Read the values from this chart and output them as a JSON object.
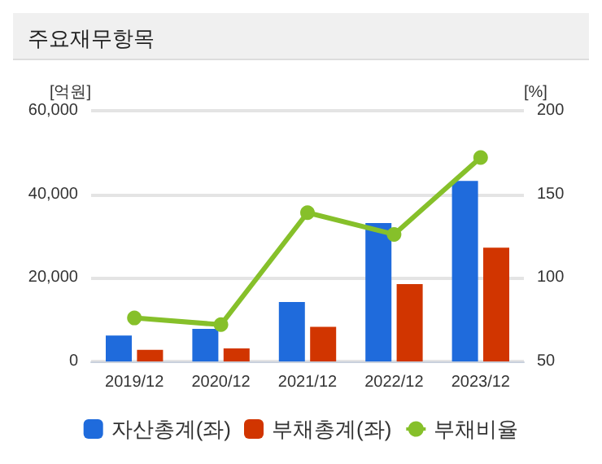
{
  "chart_data": {
    "type": "bar",
    "title": "주요재무항목",
    "ylabel": "[억원]",
    "y2label": "[%]",
    "categories": [
      "2019/12",
      "2020/12",
      "2021/12",
      "2022/12",
      "2023/12"
    ],
    "series": [
      {
        "name": "자산총계(좌)",
        "color": "#1f6bdc",
        "values": [
          6200,
          7800,
          14200,
          33100,
          43200
        ]
      },
      {
        "name": "부채총계(좌)",
        "color": "#d13500",
        "values": [
          2800,
          3100,
          8300,
          18500,
          27200
        ]
      },
      {
        "name": "부채비율",
        "type": "line",
        "axis": "y2",
        "color": "#86c02a",
        "values": [
          76,
          72,
          139,
          126,
          172
        ]
      }
    ],
    "ylim": [
      0,
      60000
    ],
    "yticks": [
      0,
      {
        "value": 20000,
        "label": "20,000"
      },
      {
        "value": 40000,
        "label": "40,000"
      },
      {
        "value": 60000,
        "label": "60,000"
      }
    ],
    "y2lim": [
      50,
      200
    ],
    "y2ticks": [
      50,
      100,
      150,
      200
    ],
    "grid": "y",
    "legend": "bottom",
    "marker": "circle"
  }
}
